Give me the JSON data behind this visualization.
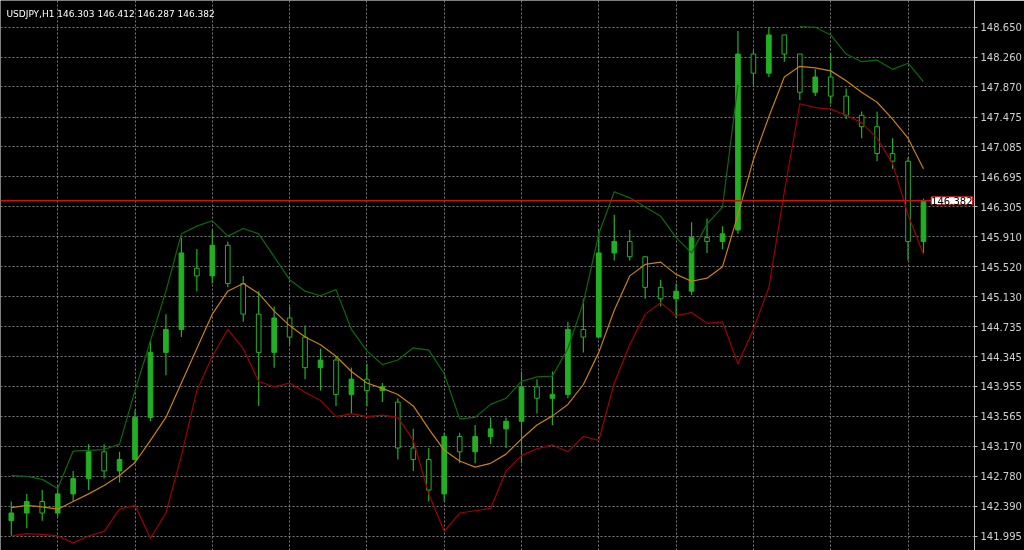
{
  "chart_data": {
    "type": "candlestick",
    "title": "USDJPY,H1 146.303 146.412 146.287 146.382",
    "categories": [
      null,
      null,
      null,
      null,
      null,
      null,
      null,
      null,
      null,
      null,
      null,
      null,
      null,
      null,
      null,
      null,
      null,
      null,
      null,
      null,
      null,
      null,
      null,
      null,
      null,
      null,
      null,
      null,
      null,
      null,
      null,
      null,
      null,
      null,
      null,
      null,
      null,
      null,
      null,
      null,
      null,
      null,
      null,
      null,
      null,
      null,
      null,
      null,
      null,
      null,
      null,
      null,
      null,
      null,
      null,
      null,
      null,
      null,
      null,
      null
    ],
    "color": "#22b022",
    "ohlc": [
      [
        142.2,
        142.45,
        142.0,
        142.3
      ],
      [
        142.3,
        142.55,
        142.1,
        142.45
      ],
      [
        142.45,
        142.6,
        142.2,
        142.3
      ],
      [
        142.3,
        142.65,
        142.25,
        142.55
      ],
      [
        142.55,
        142.85,
        142.45,
        142.75
      ],
      [
        142.75,
        143.2,
        142.6,
        143.1
      ],
      [
        143.1,
        143.2,
        142.75,
        142.85
      ],
      [
        142.85,
        143.1,
        142.7,
        143.0
      ],
      [
        143.0,
        143.65,
        142.95,
        143.55
      ],
      [
        143.55,
        144.55,
        143.5,
        144.4
      ],
      [
        144.4,
        144.9,
        144.1,
        144.7
      ],
      [
        144.7,
        145.9,
        144.6,
        145.7
      ],
      [
        145.5,
        145.75,
        145.2,
        145.4
      ],
      [
        145.4,
        146.0,
        145.3,
        145.8
      ],
      [
        145.8,
        145.85,
        145.25,
        145.3
      ],
      [
        145.3,
        145.4,
        144.8,
        144.9
      ],
      [
        144.9,
        145.2,
        143.7,
        144.4
      ],
      [
        144.4,
        145.0,
        144.2,
        144.85
      ],
      [
        144.85,
        145.0,
        144.5,
        144.6
      ],
      [
        144.6,
        144.75,
        144.05,
        144.2
      ],
      [
        144.2,
        144.45,
        143.9,
        144.3
      ],
      [
        144.3,
        144.35,
        143.7,
        143.85
      ],
      [
        143.85,
        144.2,
        143.6,
        144.05
      ],
      [
        144.05,
        144.25,
        143.7,
        143.9
      ],
      [
        143.9,
        144.0,
        143.75,
        143.95
      ],
      [
        143.75,
        143.8,
        143.0,
        143.15
      ],
      [
        143.15,
        143.4,
        142.85,
        143.0
      ],
      [
        143.0,
        143.15,
        142.45,
        142.6
      ],
      [
        142.55,
        143.35,
        142.45,
        143.3
      ],
      [
        143.3,
        143.35,
        142.95,
        143.1
      ],
      [
        143.1,
        143.45,
        142.95,
        143.3
      ],
      [
        143.3,
        143.55,
        143.2,
        143.4
      ],
      [
        143.4,
        143.55,
        143.15,
        143.5
      ],
      [
        143.5,
        144.15,
        142.95,
        143.95
      ],
      [
        143.95,
        144.05,
        143.6,
        143.8
      ],
      [
        143.8,
        144.15,
        143.45,
        143.85
      ],
      [
        143.85,
        144.8,
        143.8,
        144.7
      ],
      [
        144.7,
        145.1,
        144.4,
        144.6
      ],
      [
        144.6,
        146.0,
        144.6,
        145.7
      ],
      [
        145.7,
        146.2,
        145.6,
        145.85
      ],
      [
        145.85,
        146.0,
        145.6,
        145.65
      ],
      [
        145.65,
        145.65,
        145.1,
        145.25
      ],
      [
        145.25,
        145.35,
        145.0,
        145.1
      ],
      [
        145.1,
        145.3,
        144.85,
        145.2
      ],
      [
        145.2,
        146.1,
        145.15,
        145.9
      ],
      [
        145.9,
        146.15,
        145.7,
        145.85
      ],
      [
        145.85,
        146.05,
        145.75,
        145.95
      ],
      [
        146.0,
        148.6,
        145.95,
        148.3
      ],
      [
        148.3,
        148.35,
        147.9,
        148.05
      ],
      [
        148.05,
        148.65,
        148.0,
        148.55
      ],
      [
        148.55,
        148.55,
        148.2,
        148.3
      ],
      [
        148.3,
        148.3,
        147.7,
        147.8
      ],
      [
        147.8,
        148.1,
        147.75,
        148.0
      ],
      [
        148.0,
        148.3,
        147.65,
        147.75
      ],
      [
        147.75,
        147.85,
        147.45,
        147.5
      ],
      [
        147.5,
        147.55,
        147.2,
        147.35
      ],
      [
        147.35,
        147.55,
        146.9,
        147.0
      ],
      [
        147.0,
        147.2,
        146.8,
        146.9
      ],
      [
        146.9,
        146.95,
        145.6,
        145.85
      ],
      [
        145.85,
        146.41,
        145.7,
        146.38
      ]
    ],
    "series": [
      {
        "type": "line",
        "color": "#0b6a0b",
        "values": [
          142.79,
          142.78,
          142.74,
          142.62,
          143.11,
          143.12,
          143.13,
          143.2,
          143.9,
          144.55,
          145.2,
          145.95,
          146.05,
          146.12,
          145.92,
          146.02,
          145.95,
          145.65,
          145.35,
          145.2,
          145.14,
          145.22,
          144.7,
          144.42,
          144.24,
          144.3,
          144.46,
          144.43,
          144.12,
          143.53,
          143.55,
          143.72,
          143.8,
          144.02,
          144.08,
          144.09,
          144.45,
          145.05,
          145.95,
          146.5,
          146.42,
          146.3,
          146.18,
          145.9,
          145.7,
          146.08,
          146.3,
          147.9,
          null,
          null,
          null,
          148.66,
          148.65,
          148.55,
          148.3,
          148.2,
          148.22,
          148.1,
          148.18,
          147.94
        ]
      },
      {
        "type": "line",
        "color": "#c8820a",
        "values": [
          142.37,
          142.4,
          142.38,
          142.35,
          142.45,
          142.55,
          142.66,
          142.79,
          142.96,
          143.25,
          143.55,
          144.0,
          144.45,
          144.9,
          145.2,
          145.3,
          145.17,
          144.94,
          144.75,
          144.6,
          144.5,
          144.35,
          144.15,
          144.0,
          143.93,
          143.85,
          143.7,
          143.4,
          143.12,
          142.98,
          142.9,
          142.95,
          143.07,
          143.27,
          143.45,
          143.57,
          143.72,
          143.98,
          144.4,
          144.95,
          145.4,
          145.55,
          145.58,
          145.42,
          145.33,
          145.37,
          145.52,
          146.2,
          146.92,
          147.48,
          148.0,
          148.14,
          148.12,
          148.08,
          147.95,
          147.8,
          147.67,
          147.45,
          147.2,
          146.8
        ]
      },
      {
        "type": "line",
        "color": "#a00000",
        "values": [
          142.0,
          142.03,
          142.02,
          142.0,
          141.91,
          142.0,
          142.06,
          142.35,
          142.4,
          141.97,
          142.3,
          143.05,
          143.9,
          144.35,
          144.7,
          144.45,
          144.02,
          143.95,
          144.0,
          143.88,
          143.77,
          143.56,
          143.6,
          143.56,
          143.58,
          143.55,
          143.25,
          142.55,
          142.06,
          142.3,
          142.33,
          142.36,
          142.85,
          143.05,
          143.14,
          143.19,
          143.1,
          143.3,
          143.25,
          144.0,
          144.5,
          144.9,
          145.05,
          144.88,
          144.92,
          144.78,
          144.8,
          144.25,
          144.7,
          145.25,
          146.5,
          147.65,
          147.6,
          147.58,
          147.5,
          147.4,
          147.2,
          146.87,
          146.2,
          145.68
        ]
      }
    ],
    "ylim": [
      141.81,
      149.0
    ],
    "yticks": [
      141.995,
      {
        "value": 142.39,
        "label": "142.390"
      },
      {
        "value": 142.78,
        "label": "142.780"
      },
      {
        "value": 143.17,
        "label": "143.170"
      },
      143.565,
      143.955,
      144.345,
      144.735,
      {
        "value": 145.13,
        "label": "145.130"
      },
      {
        "value": 145.52,
        "label": "145.520"
      },
      {
        "value": 145.91,
        "label": "145.910"
      },
      146.305,
      146.695,
      147.085,
      147.475,
      {
        "value": 147.87,
        "label": "147.870"
      },
      {
        "value": 148.26,
        "label": "148.260"
      },
      {
        "value": 148.65,
        "label": "148.650"
      }
    ],
    "ref_lines": [
      {
        "axis": "y",
        "value": 146.382,
        "label": "146.382",
        "color": "#d01010"
      }
    ],
    "grid": true,
    "tick_labels": "y"
  }
}
